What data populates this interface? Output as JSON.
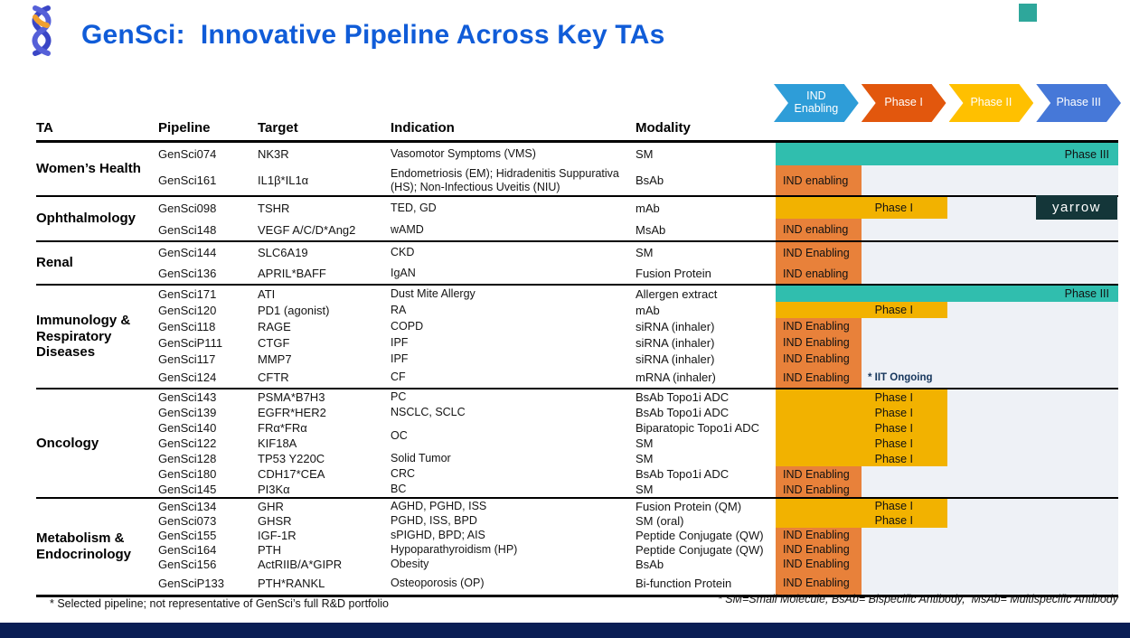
{
  "slide": {
    "title": "GenSci:  Innovative Pipeline Across Key TAs",
    "footnote_left": "* Selected pipeline; not representative of GenSci’s full R&D portfolio",
    "footnote_right": "* SM=Small Molecule, BsAb= Bispecific Antibody,  MsAb= Multispecific Antibody",
    "watermark": "yarrow"
  },
  "colors": {
    "title_blue": "#105CD8",
    "ind_bar_orange": "#E8813A",
    "phase1_bar_gold": "#F2B200",
    "phase3_bar_teal": "#30BEAE",
    "legend_ind_blue": "#2E9DD8",
    "legend_phase1_orange": "#E2570D",
    "legend_phase2_gold": "#FFC000",
    "legend_phase3_blue": "#4678D8",
    "track_background": "#EEF1F6",
    "footer_navy": "#0A1E55",
    "watermark_teal": "#143639",
    "corner_square_teal": "#2EA79B",
    "note_navy": "#16365C"
  },
  "legend": [
    {
      "label": "IND Enabling",
      "color": "#2E9DD8"
    },
    {
      "label": "Phase I",
      "color": "#E2570D"
    },
    {
      "label": "Phase II",
      "color": "#FFC000"
    },
    {
      "label": "Phase III",
      "color": "#4678D8"
    }
  ],
  "columns": [
    "TA",
    "Pipeline",
    "Target",
    "Indication",
    "Modality"
  ],
  "sections": [
    {
      "ta": "Women’s Health",
      "rows": [
        {
          "pipeline": "GenSci074",
          "target": "NK3R",
          "indication": "Vasomotor Symptoms (VMS)",
          "modality": "SM",
          "phase": "phase3",
          "phase_label": "Phase III"
        },
        {
          "pipeline": "GenSci161",
          "target": "IL1β*IL1α",
          "indication": "Endometriosis (EM); Hidradenitis Suppurativa (HS); Non-Infectious Uveitis (NIU)",
          "modality": "BsAb",
          "phase": "ind",
          "phase_label": "IND enabling"
        }
      ]
    },
    {
      "ta": "Ophthalmology",
      "rows": [
        {
          "pipeline": "GenSci098",
          "target": "TSHR",
          "indication": "TED, GD",
          "modality": "mAb",
          "phase": "phase1",
          "phase_label": "Phase I"
        },
        {
          "pipeline": "GenSci148",
          "target": "VEGF A/C/D*Ang2",
          "indication": "wAMD",
          "modality": "MsAb",
          "phase": "ind",
          "phase_label": "IND enabling"
        }
      ]
    },
    {
      "ta": "Renal",
      "rows": [
        {
          "pipeline": "GenSci144",
          "target": "SLC6A19",
          "indication": "CKD",
          "modality": "SM",
          "phase": "ind",
          "phase_label": "IND Enabling"
        },
        {
          "pipeline": "GenSci136",
          "target": "APRIL*BAFF",
          "indication": "IgAN",
          "modality": "Fusion Protein",
          "phase": "ind",
          "phase_label": "IND enabling"
        }
      ]
    },
    {
      "ta": "Immunology & Respiratory Diseases",
      "rows": [
        {
          "pipeline": "GenSci171",
          "target": "ATI",
          "indication": "Dust Mite Allergy",
          "modality": "Allergen extract",
          "phase": "phase3",
          "phase_label": "Phase III"
        },
        {
          "pipeline": "GenSci120",
          "target": "PD1 (agonist)",
          "indication": "RA",
          "modality": "mAb",
          "phase": "phase1",
          "phase_label": "Phase I"
        },
        {
          "pipeline": "GenSci118",
          "target": "RAGE",
          "indication": "COPD",
          "modality": "siRNA (inhaler)",
          "phase": "ind",
          "phase_label": "IND Enabling"
        },
        {
          "pipeline": "GenSciP111",
          "target": "CTGF",
          "indication": "IPF",
          "modality": "siRNA (inhaler)",
          "phase": "ind",
          "phase_label": "IND Enabling"
        },
        {
          "pipeline": "GenSci117",
          "target": "MMP7",
          "indication": "IPF",
          "modality": "siRNA (inhaler)",
          "phase": "ind",
          "phase_label": "IND Enabling"
        },
        {
          "pipeline": "GenSci124",
          "target": "CFTR",
          "indication": "CF",
          "modality": "mRNA (inhaler)",
          "phase": "ind",
          "phase_label": "IND Enabling",
          "note": "* IIT Ongoing"
        }
      ]
    },
    {
      "ta": "Oncology",
      "rows": [
        {
          "pipeline": "GenSci143",
          "target": "PSMA*B7H3",
          "indication": "PC",
          "modality": "BsAb Topo1i ADC",
          "phase": "phase1",
          "phase_label": "Phase I"
        },
        {
          "pipeline": "GenSci139",
          "target": "EGFR*HER2",
          "indication": "NSCLC, SCLC",
          "modality": "BsAb Topo1i ADC",
          "phase": "phase1",
          "phase_label": "Phase I"
        },
        {
          "pipeline": "GenSci140",
          "target": "FRα*FRα",
          "indication": "OC",
          "indication_span": 2,
          "modality": "Biparatopic Topo1i ADC",
          "phase": "phase1",
          "phase_label": "Phase I"
        },
        {
          "pipeline": "GenSci122",
          "target": "KIF18A",
          "indication": "",
          "modality": "SM",
          "phase": "phase1",
          "phase_label": "Phase I"
        },
        {
          "pipeline": "GenSci128",
          "target": "TP53 Y220C",
          "indication": "Solid Tumor",
          "modality": "SM",
          "phase": "phase1",
          "phase_label": "Phase I"
        },
        {
          "pipeline": "GenSci180",
          "target": "CDH17*CEA",
          "indication": "CRC",
          "modality": "BsAb Topo1i ADC",
          "phase": "ind",
          "phase_label": "IND Enabling"
        },
        {
          "pipeline": "GenSci145",
          "target": "PI3Kα",
          "indication": "BC",
          "modality": "SM",
          "phase": "ind",
          "phase_label": "IND Enabling"
        }
      ]
    },
    {
      "ta": "Metabolism & Endocrinology",
      "rows": [
        {
          "pipeline": "GenSci134",
          "target": "GHR",
          "indication": "AGHD, PGHD, ISS",
          "modality": "Fusion Protein (QM)",
          "phase": "phase1",
          "phase_label": "Phase I"
        },
        {
          "pipeline": "GenSci073",
          "target": "GHSR",
          "indication": "PGHD, ISS, BPD",
          "modality": "SM (oral)",
          "phase": "phase1",
          "phase_label": "Phase I"
        },
        {
          "pipeline": "GenSci155",
          "target": "IGF-1R",
          "indication": "sPIGHD, BPD; AIS",
          "modality": "Peptide Conjugate (QW)",
          "phase": "ind",
          "phase_label": "IND Enabling"
        },
        {
          "pipeline": "GenSci164",
          "target": "PTH",
          "indication": "Hypoparathyroidism (HP)",
          "modality": "Peptide Conjugate (QW)",
          "phase": "ind",
          "phase_label": "IND Enabling"
        },
        {
          "pipeline": "GenSci156",
          "target": "ActRIIB/A*GIPR",
          "indication": "Obesity",
          "modality": "BsAb",
          "phase": "ind",
          "phase_label": "IND Enabling"
        },
        {
          "pipeline": "GenSciP133",
          "target": "PTH*RANKL",
          "indication": "Osteoporosis (OP)",
          "modality": "Bi-function Protein",
          "phase": "ind",
          "phase_label": "IND Enabling"
        }
      ]
    }
  ]
}
